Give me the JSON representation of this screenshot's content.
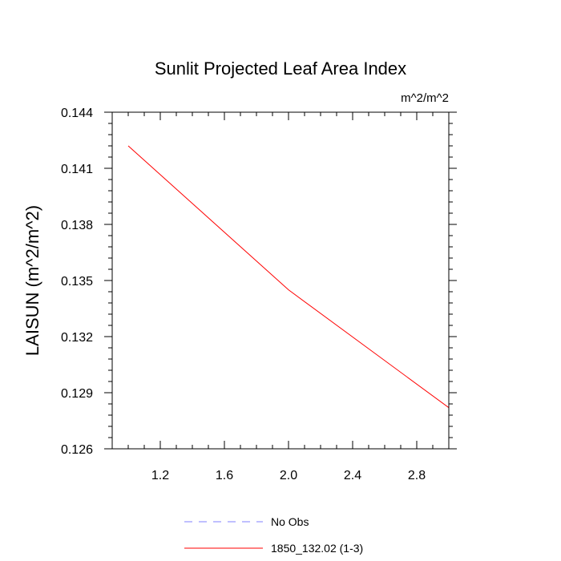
{
  "chart_data": {
    "type": "line",
    "title": "Sunlit Projected Leaf Area Index",
    "units_label": "m^2/m^2",
    "ylabel": "LAISUN  (m^2/m^2)",
    "xlabel": "",
    "xlim": [
      0.9,
      3.0
    ],
    "ylim": [
      0.126,
      0.144
    ],
    "x_ticks": [
      1.2,
      1.6,
      2.0,
      2.4,
      2.8
    ],
    "x_tick_labels": [
      "1.2",
      "1.6",
      "2.0",
      "2.4",
      "2.8"
    ],
    "y_ticks": [
      0.126,
      0.129,
      0.132,
      0.135,
      0.138,
      0.141,
      0.144
    ],
    "y_tick_labels": [
      "0.126",
      "0.129",
      "0.132",
      "0.135",
      "0.138",
      "0.141",
      "0.144"
    ],
    "grid": false,
    "legend_position": "bottom",
    "series": [
      {
        "name": "No Obs",
        "color": "#8080ff",
        "dash": "dashed",
        "x": [],
        "y": []
      },
      {
        "name": "1850_132.02 (1-3)",
        "color": "#ff0000",
        "dash": "solid",
        "x": [
          1.0,
          2.0,
          3.0
        ],
        "y": [
          0.1422,
          0.1345,
          0.1282
        ]
      }
    ]
  }
}
